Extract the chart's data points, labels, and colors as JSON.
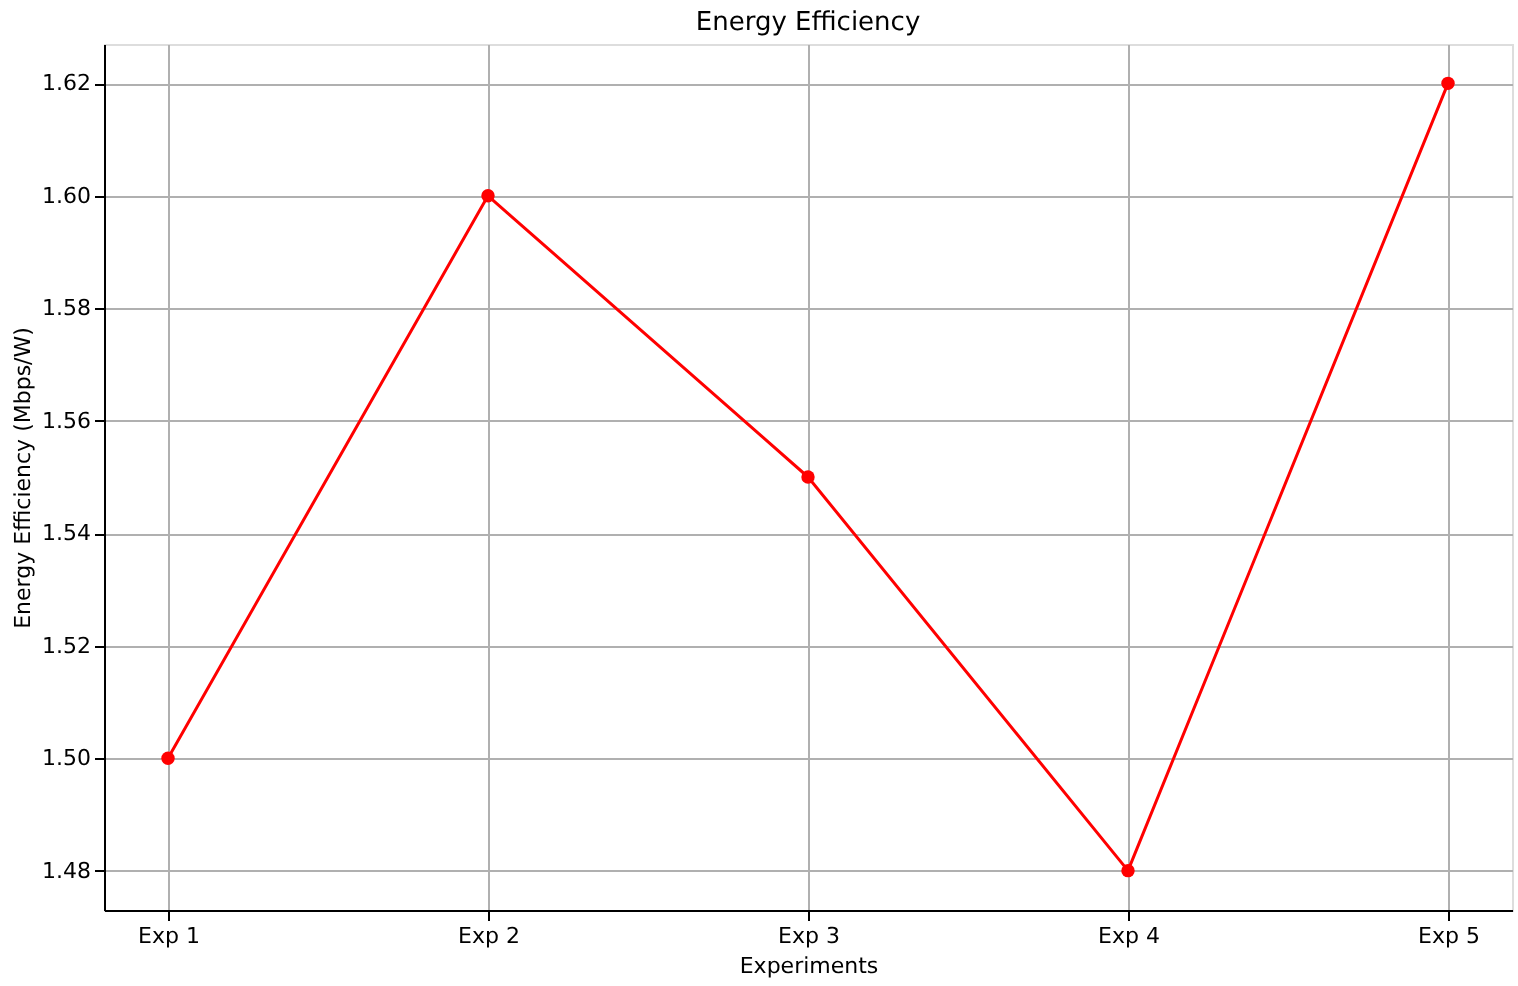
{
  "chart_data": {
    "type": "line",
    "title": "Energy Efficiency",
    "xlabel": "Experiments",
    "ylabel": "Energy Efficiency (Mbps/W)",
    "categories": [
      "Exp 1",
      "Exp 2",
      "Exp 3",
      "Exp 4",
      "Exp 5"
    ],
    "series": [
      {
        "color": "#ff0000",
        "values": [
          1.5,
          1.6,
          1.55,
          1.48,
          1.62
        ]
      }
    ],
    "ylim": [
      1.473,
      1.627
    ],
    "yticks": [
      1.48,
      {
        "value": 1.5,
        "label": "1.50"
      },
      1.52,
      1.54,
      1.56,
      1.58,
      {
        "value": 1.6,
        "label": "1.60"
      },
      1.62
    ],
    "grid": true,
    "marker": "circle",
    "line_style": "solid"
  }
}
